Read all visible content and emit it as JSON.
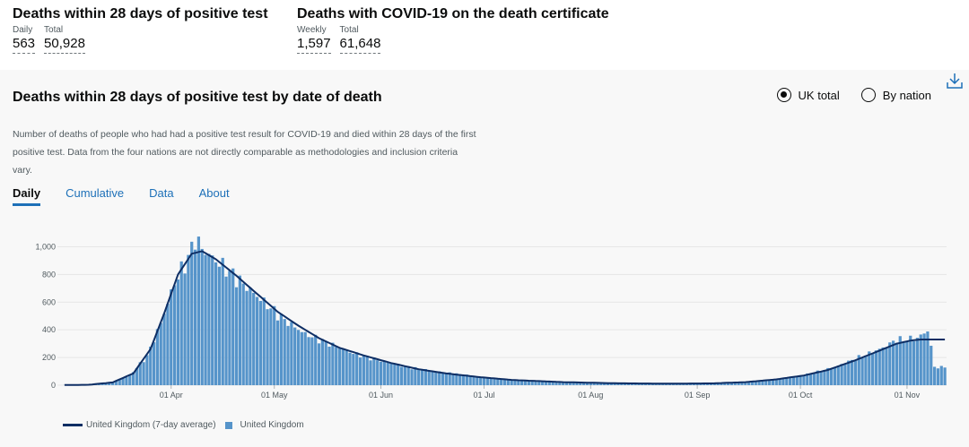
{
  "headlines": [
    {
      "title": "Deaths within 28 days of positive test",
      "stats": [
        {
          "label": "Daily",
          "value": "563"
        },
        {
          "label": "Total",
          "value": "50,928"
        }
      ]
    },
    {
      "title": "Deaths with COVID-19 on the death certificate",
      "stats": [
        {
          "label": "Weekly",
          "value": "1,597"
        },
        {
          "label": "Total",
          "value": "61,648"
        }
      ]
    }
  ],
  "card": {
    "title": "Deaths within 28 days of positive test by date of death",
    "description": "Number of deaths of people who had had a positive test result for COVID-19 and died within 28 days of the first positive test. Data from the four nations are not directly comparable as methodologies and inclusion criteria vary.",
    "radios": [
      {
        "label": "UK total",
        "selected": true
      },
      {
        "label": "By nation",
        "selected": false
      }
    ],
    "tabs": [
      {
        "label": "Daily"
      },
      {
        "label": "Cumulative"
      },
      {
        "label": "Data"
      },
      {
        "label": "About"
      }
    ],
    "download_icon": "download-icon"
  },
  "colors": {
    "bar": "#5694ca",
    "line": "#0e2e64",
    "link": "#1d70b8",
    "grid": "#e6e6e6"
  },
  "chart_data": {
    "type": "bar",
    "title": "Deaths within 28 days of positive test by date of death",
    "xlabel": "",
    "ylabel": "",
    "ylim": [
      0,
      1100
    ],
    "yticks": [
      0,
      200,
      400,
      600,
      800,
      1000
    ],
    "ytick_labels": [
      "0",
      "200",
      "400",
      "600",
      "800",
      "1,000"
    ],
    "start_date": "2020-03-01",
    "end_date": "2020-11-12",
    "xtick_labels": [
      "01 Apr",
      "01 May",
      "01 Jun",
      "01 Jul",
      "01 Aug",
      "01 Sep",
      "01 Oct",
      "01 Nov"
    ],
    "xtick_day_index": [
      31,
      61,
      92,
      122,
      153,
      184,
      214,
      245
    ],
    "daily_anchors": [
      [
        0,
        1
      ],
      [
        7,
        3
      ],
      [
        14,
        20
      ],
      [
        19,
        70
      ],
      [
        24,
        210
      ],
      [
        28,
        450
      ],
      [
        32,
        740
      ],
      [
        36,
        920
      ],
      [
        38,
        1060
      ],
      [
        40,
        985
      ],
      [
        43,
        920
      ],
      [
        47,
        840
      ],
      [
        52,
        730
      ],
      [
        58,
        600
      ],
      [
        64,
        470
      ],
      [
        70,
        370
      ],
      [
        77,
        300
      ],
      [
        84,
        230
      ],
      [
        92,
        175
      ],
      [
        100,
        130
      ],
      [
        108,
        100
      ],
      [
        116,
        75
      ],
      [
        124,
        50
      ],
      [
        135,
        30
      ],
      [
        150,
        18
      ],
      [
        165,
        13
      ],
      [
        180,
        12
      ],
      [
        190,
        14
      ],
      [
        200,
        25
      ],
      [
        210,
        50
      ],
      [
        218,
        90
      ],
      [
        225,
        140
      ],
      [
        232,
        210
      ],
      [
        238,
        270
      ],
      [
        242,
        330
      ],
      [
        244,
        325
      ],
      [
        248,
        340
      ],
      [
        251,
        395
      ],
      [
        252,
        280
      ],
      [
        253,
        130
      ]
    ],
    "average_anchors": [
      [
        0,
        1
      ],
      [
        7,
        3
      ],
      [
        14,
        20
      ],
      [
        20,
        85
      ],
      [
        25,
        260
      ],
      [
        29,
        520
      ],
      [
        33,
        800
      ],
      [
        37,
        950
      ],
      [
        40,
        968
      ],
      [
        44,
        910
      ],
      [
        50,
        790
      ],
      [
        56,
        660
      ],
      [
        62,
        530
      ],
      [
        68,
        430
      ],
      [
        74,
        340
      ],
      [
        80,
        270
      ],
      [
        87,
        215
      ],
      [
        95,
        160
      ],
      [
        103,
        115
      ],
      [
        111,
        85
      ],
      [
        120,
        60
      ],
      [
        130,
        38
      ],
      [
        145,
        22
      ],
      [
        160,
        14
      ],
      [
        175,
        11
      ],
      [
        188,
        13
      ],
      [
        198,
        22
      ],
      [
        207,
        42
      ],
      [
        215,
        70
      ],
      [
        222,
        110
      ],
      [
        230,
        180
      ],
      [
        237,
        250
      ],
      [
        242,
        300
      ],
      [
        246,
        322
      ],
      [
        249,
        330
      ]
    ],
    "series": [
      {
        "name": "United Kingdom (7-day average)",
        "kind": "line"
      },
      {
        "name": "United Kingdom",
        "kind": "bar"
      }
    ],
    "legend": "bottom-left"
  }
}
